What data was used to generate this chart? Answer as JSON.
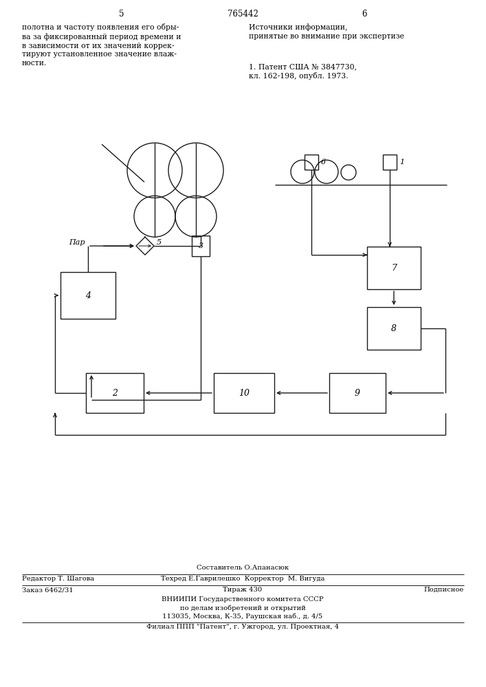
{
  "page_number_left": "5",
  "page_number_center": "765442",
  "page_number_right": "6",
  "text_left": "полотна и частоту появления его обры-\nва за фиксированный период времени и\nв зависимости от их значений коррек-\nтируют установленное значение влаж-\nности.",
  "text_right_title": "Источники информации,\nпринятые во внимание при экспертизе",
  "text_right_body": "1. Патент США № 3847730,\nкл. 162-198, опубл. 1973.",
  "footer_line1": "Составитель О.Апанасюк",
  "footer_line2_left": "Редактор Т. Шагова",
  "footer_line2_center": "Техред Е.Гаврилешко  Корректор  М. Вигуда",
  "footer_line3_left": "Заказ 6462/31",
  "footer_line3_center": "Тираж 430",
  "footer_line3_right": "Подписное",
  "footer_line4": "ВНИИПИ Государственного комитета СССР",
  "footer_line5": "по делам изобретений и открытий",
  "footer_line6": "113035, Москва, К-35, Раушская наб., д. 4/5",
  "footer_line7": "Филиал ППП \"Патент\", г. Ужгород, ул. Проектная, 4",
  "bg_color": "#ffffff",
  "line_color": "#1a1a1a"
}
